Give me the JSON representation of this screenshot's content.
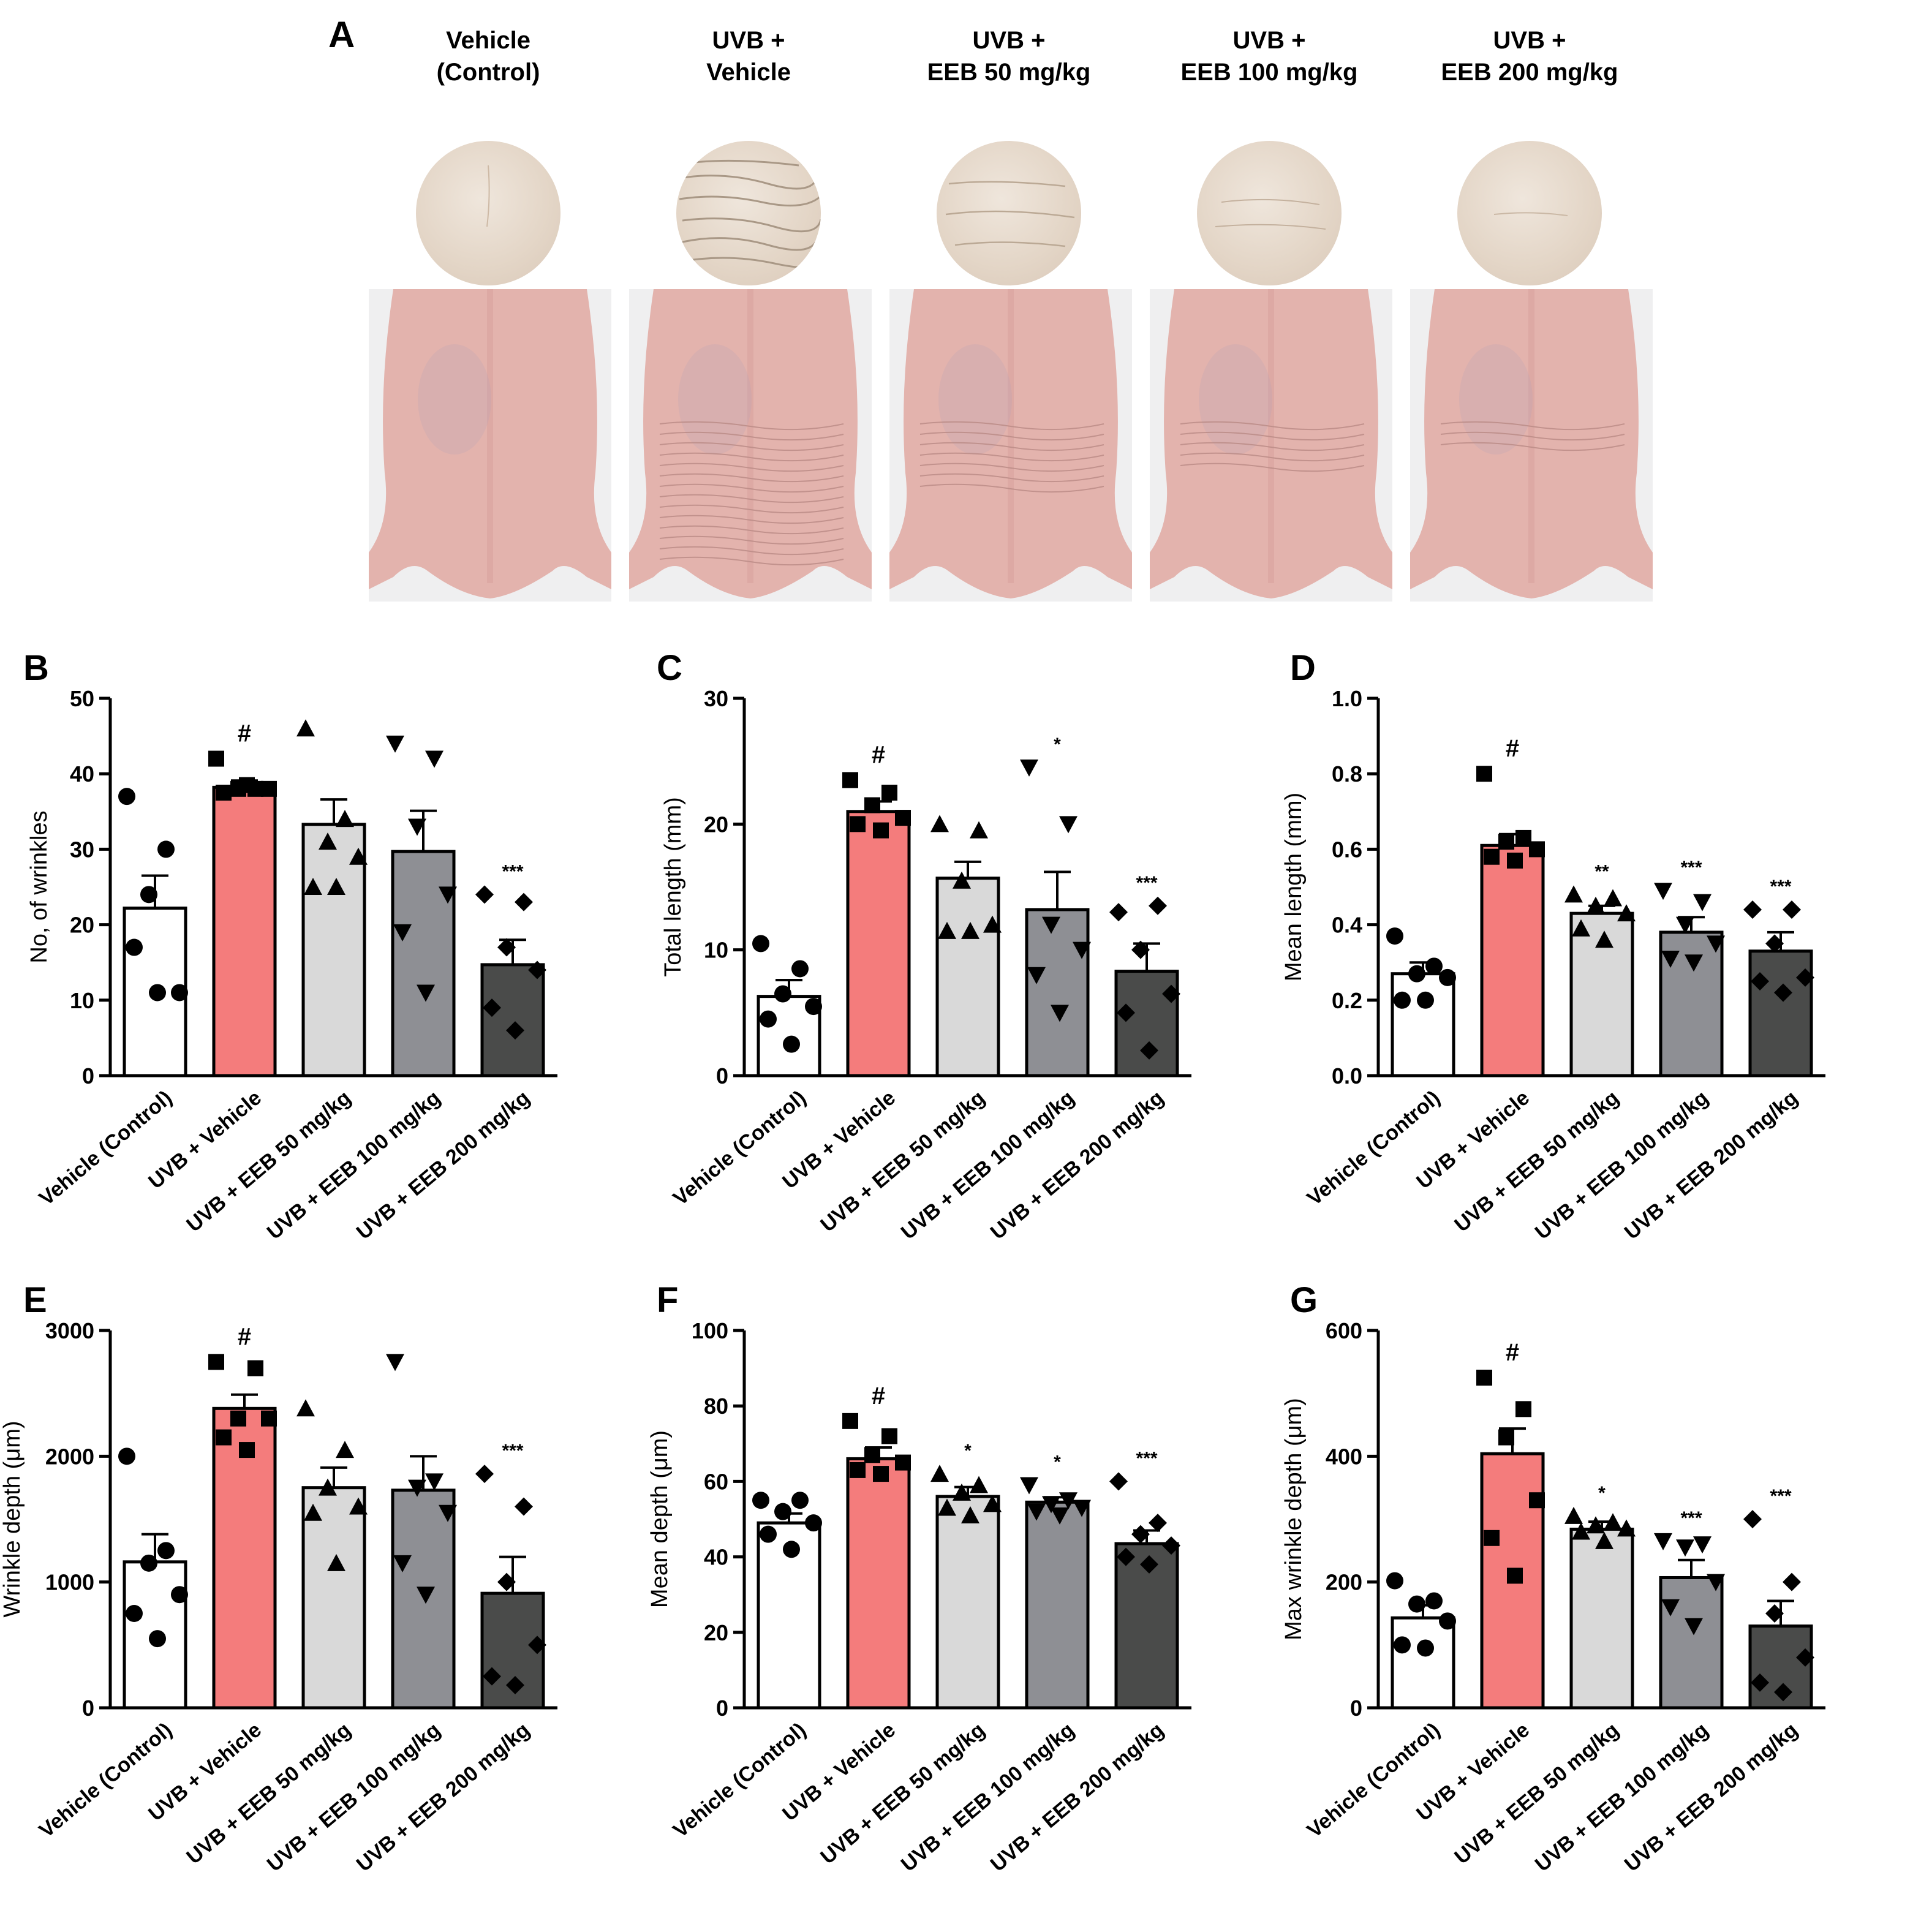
{
  "figure": {
    "panel_labels": [
      "A",
      "B",
      "C",
      "D",
      "E",
      "F",
      "G"
    ]
  },
  "panelA": {
    "columns": [
      {
        "title": "Vehicle\n(Control)"
      },
      {
        "title": "UVB +\nVehicle"
      },
      {
        "title": "UVB +\nEEB 50 mg/kg"
      },
      {
        "title": "UVB +\nEEB 100 mg/kg"
      },
      {
        "title": "UVB +\nEEB 200 mg/kg"
      }
    ]
  },
  "colors": {
    "control": "#ffffff",
    "uvb_vehicle": "#f47c7c",
    "eeb50": "#d9d9d9",
    "eeb100": "#8e8f94",
    "eeb200": "#4a4b4a",
    "photo_bg": "#efeff0",
    "skin": "#e3b3ad"
  },
  "chart_data": [
    {
      "panel": "B",
      "type": "bar",
      "ylabel": "No, of wrinkles",
      "ylim": [
        0,
        50
      ],
      "yticks": [
        0,
        10,
        20,
        30,
        40,
        50
      ],
      "categories": [
        "Vehicle (Control)",
        "UVB + Vehicle",
        "UVB + EEB 50 mg/kg",
        "UVB + EEB 100 mg/kg",
        "UVB + EEB 200 mg/kg"
      ],
      "values": [
        22.2,
        38.2,
        33.3,
        29.7,
        14.7
      ],
      "errors": [
        4.3,
        0.9,
        3.3,
        5.4,
        3.3
      ],
      "points": [
        [
          37,
          30,
          24,
          11,
          17,
          11
        ],
        [
          42,
          38,
          38,
          38,
          37.5,
          38.5
        ],
        [
          46,
          34,
          31,
          29,
          25,
          25
        ],
        [
          44,
          42,
          33,
          24,
          19,
          11
        ],
        [
          24,
          23,
          17,
          14,
          9,
          6
        ]
      ],
      "significance": [
        "",
        "#",
        "",
        "",
        "***"
      ]
    },
    {
      "panel": "C",
      "type": "bar",
      "ylabel": "Total length (mm)",
      "ylim": [
        0,
        30
      ],
      "yticks": [
        0,
        10,
        20,
        30
      ],
      "categories": [
        "Vehicle (Control)",
        "UVB + Vehicle",
        "UVB + EEB 50 mg/kg",
        "UVB + EEB 100 mg/kg",
        "UVB + EEB 200 mg/kg"
      ],
      "values": [
        6.3,
        21.0,
        15.7,
        13.2,
        8.3
      ],
      "errors": [
        1.3,
        0.8,
        1.3,
        3.0,
        2.2
      ],
      "points": [
        [
          10.5,
          8.5,
          6.5,
          5.5,
          4.5,
          2.5
        ],
        [
          23.5,
          22.5,
          21.5,
          20.5,
          20,
          19.5
        ],
        [
          20,
          19.5,
          15.5,
          12,
          11.5,
          11.5
        ],
        [
          24.5,
          20,
          12,
          10,
          8,
          5
        ],
        [
          13,
          13.5,
          10,
          6.5,
          5,
          2
        ]
      ],
      "significance": [
        "",
        "#",
        "",
        "*",
        "***"
      ]
    },
    {
      "panel": "D",
      "type": "bar",
      "ylabel": "Mean length (mm)",
      "ylim": [
        0,
        1.0
      ],
      "yticks": [
        "0.0",
        "0.2",
        "0.4",
        "0.6",
        "0.8",
        "1.0"
      ],
      "categories": [
        "Vehicle (Control)",
        "UVB + Vehicle",
        "UVB + EEB 50 mg/kg",
        "UVB + EEB 100 mg/kg",
        "UVB + EEB 200 mg/kg"
      ],
      "values": [
        0.27,
        0.61,
        0.43,
        0.38,
        0.33
      ],
      "errors": [
        0.03,
        0.03,
        0.02,
        0.04,
        0.05
      ],
      "points": [
        [
          0.37,
          0.29,
          0.27,
          0.26,
          0.2,
          0.2
        ],
        [
          0.8,
          0.63,
          0.62,
          0.6,
          0.58,
          0.57
        ],
        [
          0.48,
          0.47,
          0.45,
          0.43,
          0.39,
          0.36
        ],
        [
          0.49,
          0.46,
          0.4,
          0.35,
          0.31,
          0.3
        ],
        [
          0.44,
          0.44,
          0.35,
          0.26,
          0.25,
          0.22
        ]
      ],
      "significance": [
        "",
        "#",
        "**",
        "***",
        "***"
      ]
    },
    {
      "panel": "E",
      "type": "bar",
      "ylabel": "Wrinkle depth (μm)",
      "ylim": [
        0,
        3000
      ],
      "yticks": [
        0,
        1000,
        2000,
        3000
      ],
      "categories": [
        "Vehicle (Control)",
        "UVB + Vehicle",
        "UVB + EEB 50 mg/kg",
        "UVB + EEB 100 mg/kg",
        "UVB + EEB 200 mg/kg"
      ],
      "values": [
        1160,
        2380,
        1750,
        1730,
        910
      ],
      "errors": [
        220,
        110,
        160,
        270,
        290
      ],
      "points": [
        [
          2000,
          1250,
          1150,
          900,
          750,
          550
        ],
        [
          2750,
          2700,
          2300,
          2300,
          2150,
          2050
        ],
        [
          2380,
          2050,
          1750,
          1600,
          1550,
          1150
        ],
        [
          2750,
          1800,
          1750,
          1550,
          1150,
          900
        ],
        [
          1860,
          1600,
          1000,
          500,
          250,
          180
        ]
      ],
      "significance": [
        "",
        "#",
        "",
        "",
        "***"
      ]
    },
    {
      "panel": "F",
      "type": "bar",
      "ylabel": "Mean depth (μm)",
      "ylim": [
        0,
        100
      ],
      "yticks": [
        0,
        20,
        40,
        60,
        80,
        100
      ],
      "categories": [
        "Vehicle (Control)",
        "UVB + Vehicle",
        "UVB + EEB 50 mg/kg",
        "UVB + EEB 100 mg/kg",
        "UVB + EEB 200 mg/kg"
      ],
      "values": [
        49,
        66,
        56,
        54.5,
        43.5
      ],
      "errors": [
        2.5,
        3,
        2.5,
        1.3,
        3.5
      ],
      "points": [
        [
          55,
          55,
          52,
          49,
          46,
          42
        ],
        [
          76,
          72,
          67,
          65,
          63,
          62
        ],
        [
          62,
          59,
          57,
          54,
          53,
          51
        ],
        [
          59,
          55,
          54,
          53,
          52,
          51
        ],
        [
          60,
          49,
          46,
          43,
          40,
          38
        ]
      ],
      "significance": [
        "",
        "#",
        "*",
        "*",
        "***"
      ]
    },
    {
      "panel": "G",
      "type": "bar",
      "ylabel": "Max wrinkle depth (μm)",
      "ylim": [
        0,
        600
      ],
      "yticks": [
        0,
        200,
        400,
        600
      ],
      "categories": [
        "Vehicle (Control)",
        "UVB + Vehicle",
        "UVB + EEB 50 mg/kg",
        "UVB + EEB 100 mg/kg",
        "UVB + EEB 200 mg/kg"
      ],
      "values": [
        143,
        404,
        284,
        207,
        130
      ],
      "errors": [
        20,
        40,
        12,
        28,
        40
      ],
      "points": [
        [
          202,
          170,
          165,
          138,
          100,
          95
        ],
        [
          525,
          475,
          430,
          330,
          270,
          210
        ],
        [
          305,
          295,
          290,
          285,
          280,
          265
        ],
        [
          265,
          260,
          255,
          200,
          160,
          130
        ],
        [
          300,
          200,
          150,
          80,
          40,
          25
        ]
      ],
      "significance": [
        "",
        "#",
        "*",
        "***",
        "***"
      ]
    }
  ]
}
